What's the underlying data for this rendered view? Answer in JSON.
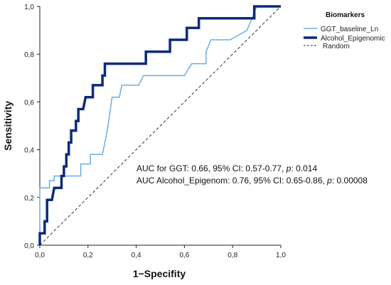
{
  "chart_data": {
    "type": "line",
    "title": "",
    "xlabel": "1−Specifity",
    "ylabel": "Sensitivity",
    "xlim": [
      0,
      1
    ],
    "ylim": [
      0,
      1
    ],
    "x_ticks": [
      "0,0",
      "0,2",
      "0,4",
      "0,6",
      "0,8",
      "1,0"
    ],
    "y_ticks": [
      "0,0",
      "0,2",
      "0,4",
      "0,6",
      "0,8",
      "1,0"
    ],
    "grid": false,
    "legend": {
      "title": "Biomarkers",
      "placement": "top-right",
      "entries": [
        "GGT_baseline_Ln",
        "Alcohol_Epigenomic",
        "Random"
      ]
    },
    "annotations": {
      "ggt": "AUC for GGT: 0.66, 95% CI: 0.57-0.77, ",
      "alcohol": "AUC Alcohol_Epigenom: 0.76, 95% CI: 0.65-0.86, ",
      "p_label": "p",
      "ggt_p": ": 0.014",
      "alcohol_p": ": 0.00008"
    },
    "series": [
      {
        "name": "GGT_baseline_Ln",
        "color": "#6aaee0",
        "points": [
          [
            0,
            0
          ],
          [
            0,
            0.24
          ],
          [
            0.04,
            0.24
          ],
          [
            0.04,
            0.27
          ],
          [
            0.06,
            0.27
          ],
          [
            0.06,
            0.29
          ],
          [
            0.17,
            0.29
          ],
          [
            0.17,
            0.34
          ],
          [
            0.21,
            0.34
          ],
          [
            0.21,
            0.38
          ],
          [
            0.26,
            0.38
          ],
          [
            0.28,
            0.48
          ],
          [
            0.29,
            0.55
          ],
          [
            0.3,
            0.62
          ],
          [
            0.33,
            0.62
          ],
          [
            0.34,
            0.67
          ],
          [
            0.41,
            0.67
          ],
          [
            0.43,
            0.71
          ],
          [
            0.6,
            0.71
          ],
          [
            0.63,
            0.76
          ],
          [
            0.69,
            0.76
          ],
          [
            0.69,
            0.81
          ],
          [
            0.71,
            0.86
          ],
          [
            0.79,
            0.86
          ],
          [
            0.86,
            0.9
          ],
          [
            0.9,
            1.0
          ],
          [
            1.0,
            1.0
          ]
        ]
      },
      {
        "name": "Alcohol_Epigenomic",
        "color": "#0d2a7a",
        "points": [
          [
            0,
            0
          ],
          [
            0,
            0.05
          ],
          [
            0.02,
            0.05
          ],
          [
            0.02,
            0.1
          ],
          [
            0.03,
            0.1
          ],
          [
            0.03,
            0.19
          ],
          [
            0.05,
            0.19
          ],
          [
            0.06,
            0.24
          ],
          [
            0.09,
            0.24
          ],
          [
            0.09,
            0.29
          ],
          [
            0.1,
            0.29
          ],
          [
            0.1,
            0.33
          ],
          [
            0.11,
            0.33
          ],
          [
            0.11,
            0.38
          ],
          [
            0.12,
            0.38
          ],
          [
            0.12,
            0.43
          ],
          [
            0.13,
            0.43
          ],
          [
            0.13,
            0.48
          ],
          [
            0.15,
            0.48
          ],
          [
            0.15,
            0.52
          ],
          [
            0.16,
            0.52
          ],
          [
            0.16,
            0.57
          ],
          [
            0.18,
            0.57
          ],
          [
            0.19,
            0.62
          ],
          [
            0.22,
            0.62
          ],
          [
            0.22,
            0.67
          ],
          [
            0.26,
            0.67
          ],
          [
            0.26,
            0.71
          ],
          [
            0.27,
            0.71
          ],
          [
            0.27,
            0.76
          ],
          [
            0.44,
            0.76
          ],
          [
            0.44,
            0.81
          ],
          [
            0.54,
            0.81
          ],
          [
            0.54,
            0.86
          ],
          [
            0.61,
            0.86
          ],
          [
            0.61,
            0.91
          ],
          [
            0.66,
            0.91
          ],
          [
            0.66,
            0.95
          ],
          [
            0.89,
            0.95
          ],
          [
            0.89,
            1.0
          ],
          [
            1.0,
            1.0
          ]
        ]
      },
      {
        "name": "Random",
        "color": "#333333",
        "dashed": true,
        "points": [
          [
            0,
            0
          ],
          [
            1,
            1
          ]
        ]
      }
    ]
  }
}
